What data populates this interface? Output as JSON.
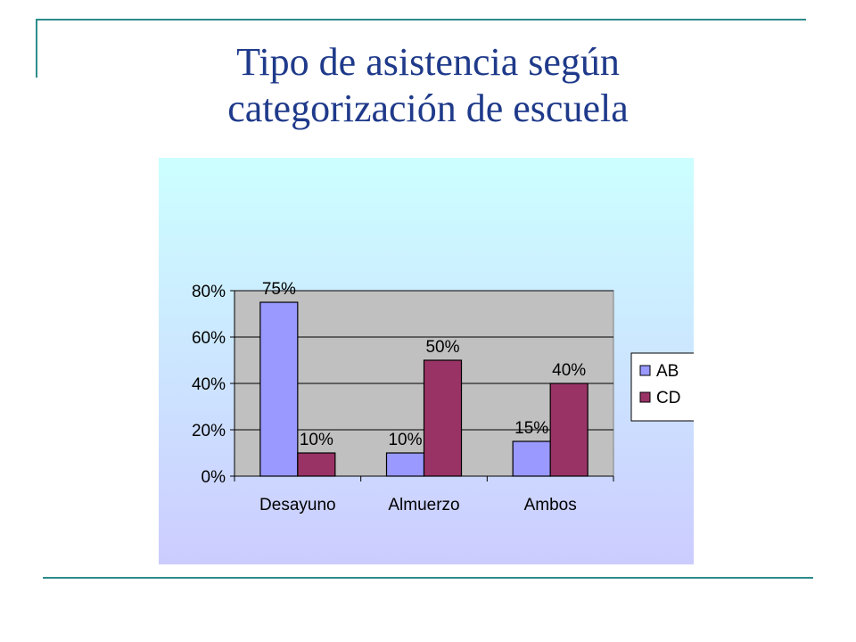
{
  "slide": {
    "title_line1": "Tipo de asistencia según",
    "title_line2": "categorización de escuela",
    "accent_color": "#2e8b8b",
    "title_color": "#1f3a8a"
  },
  "chart_data": {
    "type": "bar",
    "categories": [
      "Desayuno",
      "Almuerzo",
      "Ambos"
    ],
    "series": [
      {
        "name": "AB",
        "values": [
          75,
          10,
          15
        ],
        "labels": [
          "75%",
          "10%",
          "15%"
        ],
        "color": "#9999ff"
      },
      {
        "name": "CD",
        "values": [
          10,
          50,
          40
        ],
        "labels": [
          "10%",
          "50%",
          "40%"
        ],
        "color": "#993366"
      }
    ],
    "ylim": [
      0,
      80
    ],
    "yticks": [
      0,
      20,
      40,
      60,
      80
    ],
    "ytick_labels": [
      "0%",
      "20%",
      "40%",
      "60%",
      "80%"
    ],
    "grid": true,
    "plot_background": "#c0c0c0",
    "legend_position": "right"
  }
}
